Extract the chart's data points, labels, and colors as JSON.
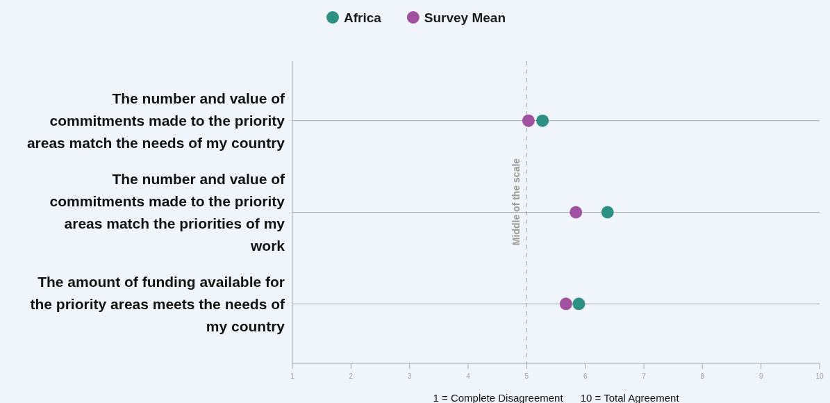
{
  "chart_data": {
    "type": "scatter",
    "orientation": "horizontal",
    "categories": [
      "The number and value of commitments made to the priority areas match the needs of my country",
      "The number and value of commitments made to the priority areas match the priorities of my work",
      "The amount of funding available for the priority areas meets the needs of my country"
    ],
    "series": [
      {
        "name": "Africa",
        "color": "#2e9082",
        "values": [
          5.27,
          6.38,
          5.89
        ]
      },
      {
        "name": "Survey Mean",
        "color": "#a0519f",
        "values": [
          5.03,
          5.84,
          5.67
        ]
      }
    ],
    "xlim": [
      1,
      10
    ],
    "xticks": [
      1,
      2,
      3,
      4,
      5,
      6,
      7,
      8,
      9,
      10
    ],
    "xlabel": "1 = Complete Disagreement      10 = Total Agreement",
    "ref_lines": [
      {
        "axis": "x",
        "value": 5,
        "label": "Middle of the scale",
        "color": "#9a9a9a",
        "line_style": "dashed"
      }
    ],
    "grid": "y",
    "legend": "top",
    "marker": "circle"
  }
}
